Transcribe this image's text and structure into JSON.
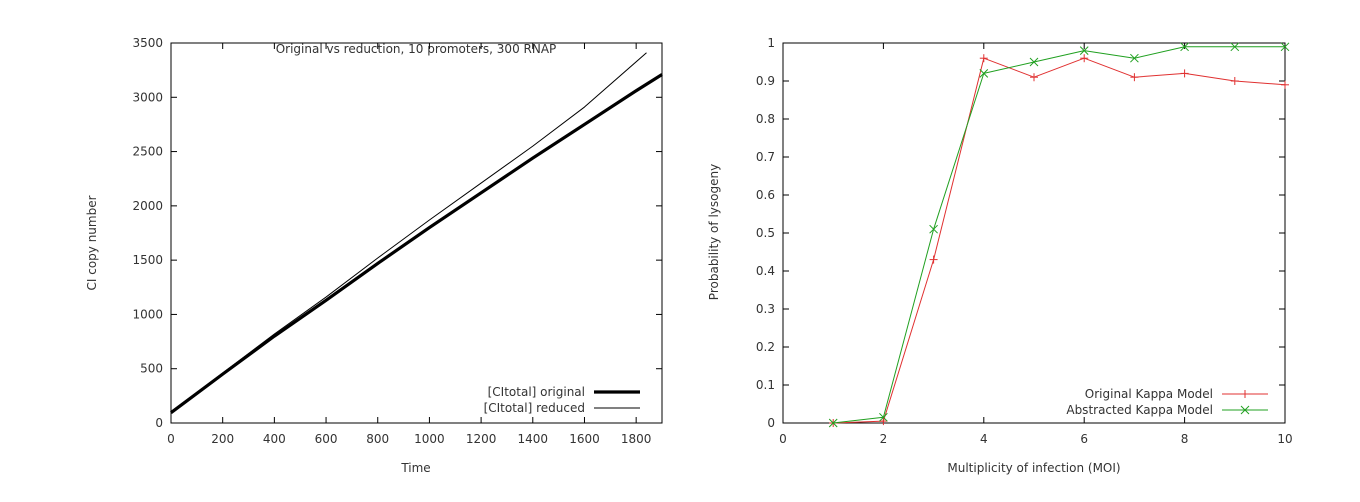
{
  "chart_data": [
    {
      "type": "line",
      "title": "Original vs reduction, 10 promoters, 300 RNAP",
      "xlabel": "Time",
      "ylabel": "CI copy number",
      "xlim": [
        0,
        1900
      ],
      "ylim": [
        0,
        3500
      ],
      "xticks": [
        0,
        200,
        400,
        600,
        800,
        1000,
        1200,
        1400,
        1600,
        1800
      ],
      "yticks": [
        0,
        500,
        1000,
        1500,
        2000,
        2500,
        3000,
        3500
      ],
      "grid": false,
      "legend_position": "bottom-right",
      "series": [
        {
          "name": "[CItotal] original",
          "color": "#000000",
          "style": "thick",
          "x": [
            0,
            200,
            400,
            600,
            800,
            1000,
            1200,
            1400,
            1600,
            1800,
            1900
          ],
          "y": [
            95,
            450,
            800,
            1130,
            1470,
            1800,
            2120,
            2440,
            2750,
            3060,
            3210
          ]
        },
        {
          "name": "[CItotal] reduced",
          "color": "#000000",
          "style": "thin",
          "x": [
            0,
            200,
            400,
            600,
            800,
            1000,
            1200,
            1400,
            1600,
            1840
          ],
          "y": [
            95,
            460,
            820,
            1160,
            1520,
            1870,
            2210,
            2550,
            2910,
            3410
          ]
        }
      ]
    },
    {
      "type": "line",
      "title": "",
      "xlabel": "Multiplicity of infection (MOI)",
      "ylabel": "Probability of lysogeny",
      "xlim": [
        0,
        10
      ],
      "ylim": [
        0,
        1
      ],
      "xticks": [
        0,
        2,
        4,
        6,
        8,
        10
      ],
      "yticks": [
        0,
        0.1,
        0.2,
        0.3,
        0.4,
        0.5,
        0.6,
        0.7,
        0.8,
        0.9,
        1
      ],
      "grid": false,
      "legend_position": "bottom-right",
      "series": [
        {
          "name": "Original Kappa Model",
          "color": "#e03030",
          "marker": "plus",
          "x": [
            1,
            2,
            3,
            4,
            5,
            6,
            7,
            8,
            9,
            10
          ],
          "y": [
            0,
            0.005,
            0.43,
            0.96,
            0.91,
            0.96,
            0.91,
            0.92,
            0.9,
            0.89
          ]
        },
        {
          "name": "Abstracted Kappa Model",
          "color": "#20a020",
          "marker": "cross",
          "x": [
            1,
            2,
            3,
            4,
            5,
            6,
            7,
            8,
            9,
            10
          ],
          "y": [
            0,
            0.015,
            0.51,
            0.92,
            0.95,
            0.98,
            0.96,
            0.99,
            0.99,
            0.99
          ]
        }
      ]
    }
  ]
}
